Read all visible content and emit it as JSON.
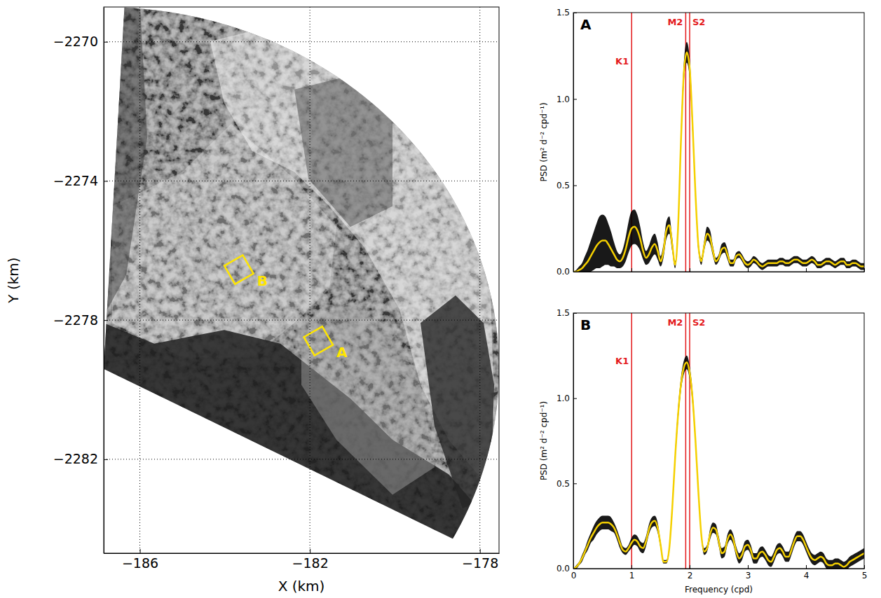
{
  "chart_data": [
    {
      "type": "map",
      "xlabel": "X (km)",
      "ylabel": "Y (km)",
      "xlim": [
        -186.85,
        -177.55
      ],
      "ylim": [
        -2284.7,
        -2269.0
      ],
      "xticks": [
        {
          "value": -186,
          "label": "−186"
        },
        {
          "value": -182,
          "label": "−182"
        },
        {
          "value": -178,
          "label": "−178"
        }
      ],
      "yticks": [
        {
          "value": -2270,
          "label": "−2270"
        },
        {
          "value": -2274,
          "label": "−2274"
        },
        {
          "value": -2278,
          "label": "−2278"
        },
        {
          "value": -2282,
          "label": "−2282"
        }
      ],
      "grid": true,
      "coverage": {
        "center": [
          -186.85,
          -2279.4
        ],
        "radius": [
          9.3,
          10.4
        ],
        "bearings": [
          3,
          118
        ]
      },
      "boxes": [
        {
          "label": "A",
          "x": -181.8,
          "y": -2278.6,
          "size": 0.5
        },
        {
          "label": "B",
          "x": -183.67,
          "y": -2276.55,
          "size": 0.5
        }
      ],
      "color": "#ffe600"
    },
    {
      "type": "line",
      "panel": "A",
      "ylabel": "PSD (m² d⁻² cpd⁻¹)",
      "xlim": [
        0,
        5
      ],
      "ylim": [
        0,
        1.5
      ],
      "xticks": [
        0,
        1,
        2,
        3,
        4,
        5
      ],
      "yticks": [
        {
          "value": 0,
          "label": "0.0"
        },
        {
          "value": 0.5,
          "label": "0.5"
        },
        {
          "value": 1,
          "label": "1.0"
        },
        {
          "value": 1.5,
          "label": "1.5"
        }
      ],
      "tick_labels": "y",
      "x": [
        0,
        0.05,
        0.1,
        0.15,
        0.2,
        0.25,
        0.3,
        0.35,
        0.4,
        0.45,
        0.5,
        0.55,
        0.6,
        0.65,
        0.7,
        0.75,
        0.8,
        0.85,
        0.9,
        0.95,
        1,
        1.05,
        1.1,
        1.15,
        1.2,
        1.25,
        1.3,
        1.35,
        1.4,
        1.45,
        1.5,
        1.55,
        1.6,
        1.65,
        1.7,
        1.75,
        1.8,
        1.85,
        1.9,
        1.95,
        2,
        2.05,
        2.1,
        2.15,
        2.2,
        2.25,
        2.3,
        2.35,
        2.4,
        2.45,
        2.5,
        2.55,
        2.6,
        2.65,
        2.7,
        2.75,
        2.8,
        2.85,
        2.9,
        2.95,
        3,
        3.05,
        3.1,
        3.15,
        3.2,
        3.25,
        3.3,
        3.35,
        3.4,
        3.45,
        3.5,
        3.55,
        3.6,
        3.65,
        3.7,
        3.75,
        3.8,
        3.85,
        3.9,
        3.95,
        4,
        4.05,
        4.1,
        4.15,
        4.2,
        4.25,
        4.3,
        4.35,
        4.4,
        4.45,
        4.5,
        4.55,
        4.6,
        4.65,
        4.7,
        4.75,
        4.8,
        4.85,
        4.9,
        4.95,
        5
      ],
      "series": [
        {
          "color": "#f5d000",
          "values": [
            0,
            0,
            0.01,
            0.02,
            0.04,
            0.06,
            0.09,
            0.12,
            0.15,
            0.17,
            0.18,
            0.18,
            0.16,
            0.13,
            0.1,
            0.07,
            0.06,
            0.08,
            0.13,
            0.2,
            0.25,
            0.26,
            0.24,
            0.19,
            0.12,
            0.08,
            0.1,
            0.14,
            0.16,
            0.12,
            0.06,
            0.12,
            0.24,
            0.27,
            0.16,
            0.04,
            0.25,
            0.75,
            1.15,
            1.27,
            1.18,
            0.85,
            0.45,
            0.15,
            0.06,
            0.15,
            0.22,
            0.2,
            0.12,
            0.06,
            0.08,
            0.13,
            0.14,
            0.1,
            0.05,
            0.05,
            0.09,
            0.1,
            0.08,
            0.05,
            0.04,
            0.05,
            0.07,
            0.06,
            0.04,
            0.03,
            0.04,
            0.05,
            0.05,
            0.05,
            0.05,
            0.06,
            0.06,
            0.05,
            0.05,
            0.06,
            0.07,
            0.07,
            0.06,
            0.05,
            0.05,
            0.06,
            0.07,
            0.06,
            0.04,
            0.04,
            0.05,
            0.06,
            0.06,
            0.05,
            0.04,
            0.05,
            0.06,
            0.06,
            0.04,
            0.04,
            0.05,
            0.05,
            0.04,
            0.03,
            0.03
          ],
          "error": [
            0,
            0.01,
            0.02,
            0.03,
            0.05,
            0.07,
            0.09,
            0.11,
            0.13,
            0.15,
            0.15,
            0.14,
            0.12,
            0.1,
            0.07,
            0.05,
            0.04,
            0.05,
            0.07,
            0.09,
            0.1,
            0.1,
            0.09,
            0.07,
            0.05,
            0.04,
            0.05,
            0.06,
            0.06,
            0.05,
            0.03,
            0.04,
            0.05,
            0.05,
            0.04,
            0.02,
            0.03,
            0.05,
            0.06,
            0.06,
            0.06,
            0.05,
            0.04,
            0.03,
            0.02,
            0.03,
            0.04,
            0.04,
            0.03,
            0.02,
            0.02,
            0.03,
            0.03,
            0.03,
            0.02,
            0.02,
            0.02,
            0.02,
            0.02,
            0.02,
            0.02,
            0.02,
            0.02,
            0.02,
            0.02,
            0.02,
            0.02,
            0.02,
            0.02,
            0.02,
            0.02,
            0.02,
            0.02,
            0.02,
            0.02,
            0.02,
            0.02,
            0.02,
            0.02,
            0.02,
            0.02,
            0.02,
            0.02,
            0.02,
            0.02,
            0.02,
            0.02,
            0.02,
            0.02,
            0.02,
            0.02,
            0.02,
            0.02,
            0.02,
            0.02,
            0.02,
            0.02,
            0.02,
            0.02,
            0.02,
            0.02
          ]
        }
      ],
      "vlines": [
        {
          "x": 1.0027,
          "label": "K1",
          "color": "#e41a1c"
        },
        {
          "x": 1.9323,
          "label": "M2",
          "color": "#e41a1c"
        },
        {
          "x": 2.0,
          "label": "S2",
          "color": "#e41a1c"
        }
      ]
    },
    {
      "type": "line",
      "panel": "B",
      "xlabel": "Frequency (cpd)",
      "ylabel": "PSD (m² d⁻² cpd⁻¹)",
      "xlim": [
        0,
        5
      ],
      "ylim": [
        0,
        1.5
      ],
      "xticks": [
        0,
        1,
        2,
        3,
        4,
        5
      ],
      "yticks": [
        {
          "value": 0,
          "label": "0.0"
        },
        {
          "value": 0.5,
          "label": "0.5"
        },
        {
          "value": 1,
          "label": "1.0"
        },
        {
          "value": 1.5,
          "label": "1.5"
        }
      ],
      "x": [
        0,
        0.05,
        0.1,
        0.15,
        0.2,
        0.25,
        0.3,
        0.35,
        0.4,
        0.45,
        0.5,
        0.55,
        0.6,
        0.65,
        0.7,
        0.75,
        0.8,
        0.85,
        0.9,
        0.95,
        1,
        1.05,
        1.1,
        1.15,
        1.2,
        1.25,
        1.3,
        1.35,
        1.4,
        1.45,
        1.5,
        1.55,
        1.6,
        1.65,
        1.7,
        1.75,
        1.8,
        1.85,
        1.9,
        1.95,
        2,
        2.05,
        2.1,
        2.15,
        2.2,
        2.25,
        2.3,
        2.35,
        2.4,
        2.45,
        2.5,
        2.55,
        2.6,
        2.65,
        2.7,
        2.75,
        2.8,
        2.85,
        2.9,
        2.95,
        3,
        3.05,
        3.1,
        3.15,
        3.2,
        3.25,
        3.3,
        3.35,
        3.4,
        3.45,
        3.5,
        3.55,
        3.6,
        3.65,
        3.7,
        3.75,
        3.8,
        3.85,
        3.9,
        3.95,
        4,
        4.05,
        4.1,
        4.15,
        4.2,
        4.25,
        4.3,
        4.35,
        4.4,
        4.45,
        4.5,
        4.55,
        4.6,
        4.65,
        4.7,
        4.75,
        4.8,
        4.85,
        4.9,
        4.95,
        5
      ],
      "series": [
        {
          "color": "#f5d000",
          "values": [
            0,
            0.01,
            0.03,
            0.06,
            0.1,
            0.14,
            0.18,
            0.21,
            0.24,
            0.26,
            0.27,
            0.27,
            0.27,
            0.26,
            0.24,
            0.2,
            0.15,
            0.11,
            0.1,
            0.12,
            0.15,
            0.17,
            0.16,
            0.13,
            0.12,
            0.16,
            0.23,
            0.27,
            0.28,
            0.24,
            0.14,
            0.04,
            0.04,
            0.12,
            0.35,
            0.65,
            0.9,
            1.08,
            1.18,
            1.21,
            1.15,
            1.0,
            0.75,
            0.45,
            0.2,
            0.1,
            0.12,
            0.2,
            0.24,
            0.23,
            0.16,
            0.09,
            0.1,
            0.17,
            0.2,
            0.17,
            0.1,
            0.06,
            0.08,
            0.13,
            0.14,
            0.11,
            0.06,
            0.06,
            0.09,
            0.1,
            0.08,
            0.05,
            0.04,
            0.07,
            0.11,
            0.12,
            0.1,
            0.07,
            0.07,
            0.11,
            0.16,
            0.19,
            0.19,
            0.17,
            0.13,
            0.09,
            0.06,
            0.05,
            0.06,
            0.07,
            0.06,
            0.03,
            0.02,
            0.02,
            0.03,
            0.03,
            0.02,
            0.01,
            0.02,
            0.04,
            0.05,
            0.06,
            0.07,
            0.08,
            0.09
          ],
          "error": [
            0,
            0.01,
            0.01,
            0.02,
            0.02,
            0.03,
            0.03,
            0.04,
            0.04,
            0.04,
            0.04,
            0.04,
            0.04,
            0.04,
            0.03,
            0.03,
            0.03,
            0.02,
            0.02,
            0.02,
            0.03,
            0.03,
            0.03,
            0.03,
            0.03,
            0.03,
            0.03,
            0.03,
            0.03,
            0.03,
            0.02,
            0.01,
            0.01,
            0.02,
            0.03,
            0.03,
            0.04,
            0.04,
            0.04,
            0.04,
            0.04,
            0.04,
            0.03,
            0.03,
            0.02,
            0.02,
            0.02,
            0.03,
            0.03,
            0.03,
            0.03,
            0.03,
            0.03,
            0.03,
            0.03,
            0.03,
            0.03,
            0.03,
            0.03,
            0.03,
            0.03,
            0.03,
            0.03,
            0.03,
            0.03,
            0.03,
            0.03,
            0.03,
            0.03,
            0.03,
            0.03,
            0.03,
            0.03,
            0.03,
            0.03,
            0.03,
            0.03,
            0.03,
            0.03,
            0.03,
            0.03,
            0.03,
            0.03,
            0.03,
            0.03,
            0.03,
            0.03,
            0.03,
            0.03,
            0.03,
            0.03,
            0.03,
            0.03,
            0.03,
            0.03,
            0.03,
            0.03,
            0.03,
            0.03,
            0.03,
            0.03
          ]
        }
      ],
      "vlines": [
        {
          "x": 1.0027,
          "label": "K1",
          "color": "#e41a1c"
        },
        {
          "x": 1.9323,
          "label": "M2",
          "color": "#e41a1c"
        },
        {
          "x": 2.0,
          "label": "S2",
          "color": "#e41a1c"
        }
      ]
    }
  ]
}
